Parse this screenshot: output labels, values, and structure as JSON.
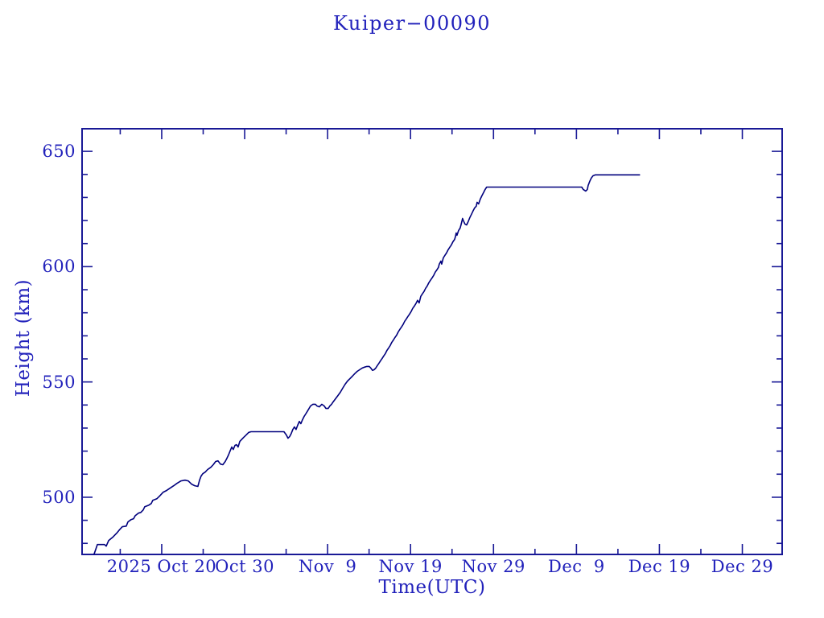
{
  "page": {
    "background": "#ffffff"
  },
  "colors": {
    "text": "#2222bb",
    "axis": "#191996",
    "line": "#00007d",
    "background": "#ffffff"
  },
  "chart_data": {
    "type": "line",
    "title": "Kuiper−00090",
    "xlabel": "Time(UTC)",
    "ylabel": "Height (km)",
    "grid": false,
    "legend": null,
    "x_unit": "days since 2025-10-20 00:00 UTC",
    "x_epoch_label": "2025",
    "xlim_days": [
      -9.6,
      74.8
    ],
    "ylim_km": [
      475.2,
      659.8
    ],
    "x_major_ticks": [
      {
        "day": 0,
        "label": "2025 Oct 20"
      },
      {
        "day": 10,
        "label": "Oct 30"
      },
      {
        "day": 20,
        "label": "Nov  9"
      },
      {
        "day": 30,
        "label": "Nov 19"
      },
      {
        "day": 40,
        "label": "Nov 29"
      },
      {
        "day": 50,
        "label": "Dec  9"
      },
      {
        "day": 60,
        "label": "Dec 19"
      },
      {
        "day": 70,
        "label": "Dec 29"
      }
    ],
    "x_minor_tick_days": [
      -5,
      5,
      15,
      25,
      35,
      45,
      55,
      65
    ],
    "y_major_ticks": [
      {
        "km": 500,
        "label": "500"
      },
      {
        "km": 550,
        "label": "550"
      },
      {
        "km": 600,
        "label": "600"
      },
      {
        "km": 650,
        "label": "650"
      }
    ],
    "y_minor_tick_kms": [
      480,
      490,
      510,
      520,
      530,
      540,
      560,
      570,
      580,
      590,
      610,
      620,
      630,
      640
    ],
    "series": [
      {
        "name": "Kuiper-00090 height",
        "points": [
          [
            -8.15,
            475.3
          ],
          [
            -7.95,
            477.4
          ],
          [
            -7.76,
            479.5
          ],
          [
            -6.89,
            479.5
          ],
          [
            -6.69,
            478.8
          ],
          [
            -6.4,
            481.2
          ],
          [
            -5.92,
            482.6
          ],
          [
            -5.43,
            484.4
          ],
          [
            -5.04,
            486.1
          ],
          [
            -4.75,
            487.2
          ],
          [
            -4.27,
            487.5
          ],
          [
            -4.07,
            489.3
          ],
          [
            -3.69,
            490.3
          ],
          [
            -3.39,
            490.7
          ],
          [
            -3.2,
            492.0
          ],
          [
            -2.81,
            493.1
          ],
          [
            -2.52,
            493.4
          ],
          [
            -2.23,
            494.5
          ],
          [
            -2.04,
            495.9
          ],
          [
            -1.55,
            496.6
          ],
          [
            -1.26,
            497.3
          ],
          [
            -1.07,
            498.7
          ],
          [
            -0.58,
            499.4
          ],
          [
            -0.29,
            500.4
          ],
          [
            0.19,
            502.2
          ],
          [
            0.58,
            502.9
          ],
          [
            0.87,
            503.6
          ],
          [
            1.16,
            504.3
          ],
          [
            1.45,
            505.0
          ],
          [
            1.84,
            506.0
          ],
          [
            2.33,
            507.1
          ],
          [
            2.81,
            507.4
          ],
          [
            3.2,
            507.1
          ],
          [
            3.59,
            505.7
          ],
          [
            3.98,
            505.0
          ],
          [
            4.36,
            504.7
          ],
          [
            4.56,
            507.4
          ],
          [
            4.75,
            509.2
          ],
          [
            4.95,
            510.2
          ],
          [
            5.24,
            510.9
          ],
          [
            5.53,
            512.0
          ],
          [
            5.92,
            513.0
          ],
          [
            6.21,
            514.1
          ],
          [
            6.5,
            515.5
          ],
          [
            6.79,
            515.8
          ],
          [
            7.08,
            514.4
          ],
          [
            7.37,
            514.1
          ],
          [
            7.66,
            515.5
          ],
          [
            7.86,
            516.9
          ],
          [
            8.05,
            518.3
          ],
          [
            8.24,
            520.0
          ],
          [
            8.44,
            521.8
          ],
          [
            8.63,
            520.7
          ],
          [
            8.83,
            522.5
          ],
          [
            9.02,
            522.8
          ],
          [
            9.21,
            521.8
          ],
          [
            9.41,
            524.2
          ],
          [
            9.6,
            524.9
          ],
          [
            9.89,
            526.0
          ],
          [
            10.18,
            527.0
          ],
          [
            10.48,
            528.1
          ],
          [
            10.77,
            528.4
          ],
          [
            14.74,
            528.4
          ],
          [
            15.03,
            527.0
          ],
          [
            15.23,
            525.6
          ],
          [
            15.42,
            526.3
          ],
          [
            15.62,
            527.7
          ],
          [
            15.81,
            529.4
          ],
          [
            16.0,
            530.5
          ],
          [
            16.2,
            529.4
          ],
          [
            16.39,
            531.2
          ],
          [
            16.59,
            532.9
          ],
          [
            16.78,
            531.9
          ],
          [
            16.97,
            533.6
          ],
          [
            17.17,
            535.0
          ],
          [
            17.36,
            536.1
          ],
          [
            17.65,
            537.8
          ],
          [
            17.94,
            539.6
          ],
          [
            18.23,
            540.3
          ],
          [
            18.53,
            540.3
          ],
          [
            18.72,
            539.6
          ],
          [
            19.01,
            539.2
          ],
          [
            19.3,
            540.3
          ],
          [
            19.59,
            539.6
          ],
          [
            19.79,
            538.5
          ],
          [
            20.08,
            538.5
          ],
          [
            20.27,
            539.6
          ],
          [
            20.47,
            540.3
          ],
          [
            20.66,
            541.3
          ],
          [
            20.95,
            542.7
          ],
          [
            21.24,
            544.1
          ],
          [
            21.53,
            545.5
          ],
          [
            21.82,
            547.3
          ],
          [
            22.11,
            549.0
          ],
          [
            22.4,
            550.4
          ],
          [
            22.7,
            551.5
          ],
          [
            22.99,
            552.5
          ],
          [
            23.28,
            553.6
          ],
          [
            23.57,
            554.6
          ],
          [
            23.86,
            555.3
          ],
          [
            24.15,
            556.0
          ],
          [
            24.44,
            556.4
          ],
          [
            24.73,
            556.7
          ],
          [
            25.02,
            556.7
          ],
          [
            25.22,
            556.0
          ],
          [
            25.41,
            555.0
          ],
          [
            25.6,
            555.3
          ],
          [
            25.8,
            556.0
          ],
          [
            25.99,
            557.1
          ],
          [
            26.19,
            558.1
          ],
          [
            26.38,
            559.2
          ],
          [
            26.58,
            560.2
          ],
          [
            26.77,
            561.3
          ],
          [
            26.96,
            562.3
          ],
          [
            27.16,
            563.7
          ],
          [
            27.35,
            564.7
          ],
          [
            27.55,
            565.8
          ],
          [
            27.74,
            567.2
          ],
          [
            27.93,
            568.2
          ],
          [
            28.13,
            569.3
          ],
          [
            28.32,
            570.3
          ],
          [
            28.52,
            571.7
          ],
          [
            28.71,
            572.8
          ],
          [
            28.9,
            573.8
          ],
          [
            29.1,
            574.9
          ],
          [
            29.29,
            576.3
          ],
          [
            29.49,
            577.3
          ],
          [
            29.68,
            578.4
          ],
          [
            29.87,
            579.4
          ],
          [
            30.07,
            580.5
          ],
          [
            30.26,
            581.9
          ],
          [
            30.46,
            582.9
          ],
          [
            30.65,
            584.0
          ],
          [
            30.84,
            585.4
          ],
          [
            31.04,
            584.3
          ],
          [
            31.23,
            587.1
          ],
          [
            31.43,
            588.2
          ],
          [
            31.62,
            589.2
          ],
          [
            31.81,
            590.6
          ],
          [
            32.01,
            591.6
          ],
          [
            32.2,
            593.0
          ],
          [
            32.4,
            594.1
          ],
          [
            32.59,
            595.1
          ],
          [
            32.78,
            596.2
          ],
          [
            32.98,
            597.6
          ],
          [
            33.17,
            598.6
          ],
          [
            33.37,
            599.7
          ],
          [
            33.46,
            601.1
          ],
          [
            33.66,
            602.4
          ],
          [
            33.75,
            601.1
          ],
          [
            33.95,
            603.8
          ],
          [
            34.14,
            604.9
          ],
          [
            34.33,
            605.9
          ],
          [
            34.53,
            607.3
          ],
          [
            34.72,
            608.4
          ],
          [
            34.92,
            609.4
          ],
          [
            35.11,
            610.8
          ],
          [
            35.31,
            611.8
          ],
          [
            35.4,
            612.9
          ],
          [
            35.5,
            614.6
          ],
          [
            35.6,
            613.6
          ],
          [
            35.79,
            615.7
          ],
          [
            35.98,
            616.7
          ],
          [
            36.08,
            618.1
          ],
          [
            36.18,
            619.5
          ],
          [
            36.27,
            620.9
          ],
          [
            36.37,
            619.9
          ],
          [
            36.56,
            618.5
          ],
          [
            36.76,
            618.1
          ],
          [
            36.95,
            619.5
          ],
          [
            37.15,
            621.3
          ],
          [
            37.34,
            622.7
          ],
          [
            37.53,
            624.1
          ],
          [
            37.73,
            625.5
          ],
          [
            37.92,
            626.2
          ],
          [
            38.02,
            627.9
          ],
          [
            38.21,
            627.2
          ],
          [
            38.41,
            629.3
          ],
          [
            38.6,
            630.7
          ],
          [
            38.8,
            632.1
          ],
          [
            38.99,
            633.5
          ],
          [
            39.18,
            634.5
          ],
          [
            50.63,
            634.5
          ],
          [
            50.82,
            633.5
          ],
          [
            51.12,
            632.8
          ],
          [
            51.31,
            633.5
          ],
          [
            51.41,
            635.2
          ],
          [
            51.6,
            637.0
          ],
          [
            51.79,
            638.4
          ],
          [
            51.99,
            639.4
          ],
          [
            52.28,
            639.8
          ],
          [
            57.61,
            639.8
          ]
        ]
      }
    ]
  }
}
